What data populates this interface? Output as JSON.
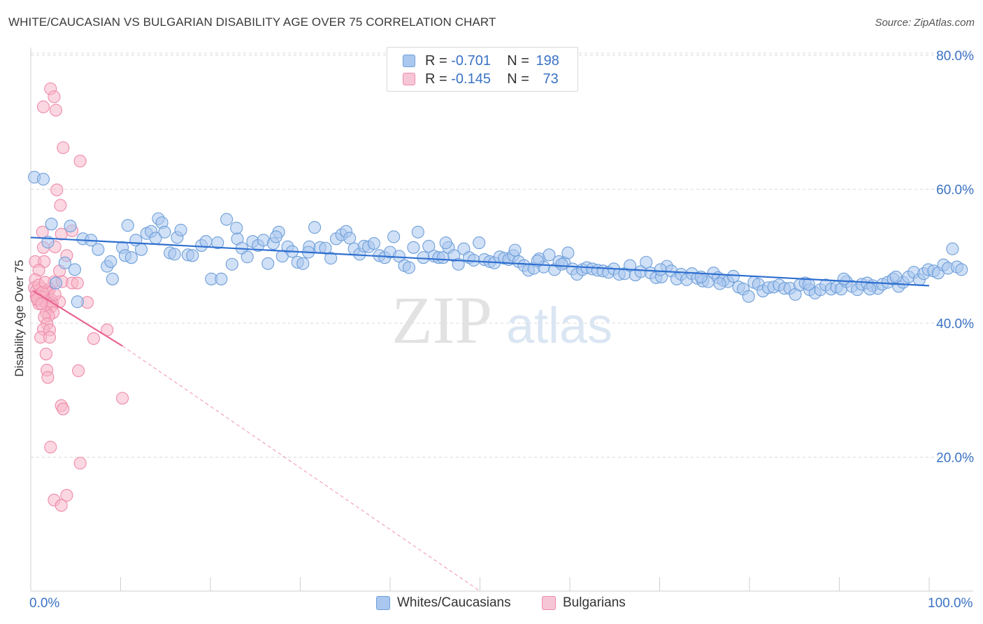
{
  "title": "WHITE/CAUCASIAN VS BULGARIAN DISABILITY AGE OVER 75 CORRELATION CHART",
  "source": "Source: ZipAtlas.com",
  "watermark": {
    "zip": "ZIP",
    "atlas": "atlas"
  },
  "legend": {
    "r_label": "R = ",
    "n_label": "N = ",
    "rows": [
      {
        "r": "-0.701",
        "n": "198"
      },
      {
        "r": "-0.145",
        "n": "73"
      }
    ]
  },
  "bottom_legend": [
    "Whites/Caucasians",
    "Bulgarians"
  ],
  "colors": {
    "blue_fill": "#a9c7ef",
    "blue_stroke": "#6e9fd9",
    "blue_line": "#2e6fd0",
    "pink_fill": "#f7b6c9",
    "pink_stroke": "#ee8aab",
    "pink_line": "#e8628f",
    "tick_label": "#3a72c4",
    "grid": "#d9d9d9"
  },
  "chart_data": {
    "type": "scatter",
    "title": "WHITE/CAUCASIAN VS BULGARIAN DISABILITY AGE OVER 75 CORRELATION CHART",
    "xlabel": "",
    "ylabel": "Disability Age Over 75",
    "xlim": [
      0,
      100
    ],
    "ylim": [
      0,
      84
    ],
    "x_tick_labels": [
      "0.0%",
      "100.0%"
    ],
    "y_ticks": [
      20,
      40,
      60,
      80
    ],
    "y_tick_labels": [
      "20.0%",
      "40.0%",
      "60.0%",
      "80.0%"
    ],
    "grid": true,
    "legend_position": "top-center",
    "series": [
      {
        "name": "Whites/Caucasians",
        "r": -0.701,
        "n": 198,
        "trend": {
          "x": [
            0,
            100
          ],
          "y": [
            52.8,
            45.6
          ]
        },
        "points": [
          [
            0.4,
            61.8
          ],
          [
            1.4,
            61.5
          ],
          [
            2.3,
            54.8
          ],
          [
            1.9,
            52.1
          ],
          [
            4.4,
            54.5
          ],
          [
            5.8,
            52.6
          ],
          [
            6.7,
            52.4
          ],
          [
            7.5,
            51.0
          ],
          [
            8.5,
            48.5
          ],
          [
            8.9,
            49.2
          ],
          [
            9.1,
            46.6
          ],
          [
            10.2,
            51.3
          ],
          [
            10.5,
            50.1
          ],
          [
            11.2,
            49.8
          ],
          [
            10.8,
            54.6
          ],
          [
            11.7,
            52.4
          ],
          [
            12.3,
            51.0
          ],
          [
            12.9,
            53.4
          ],
          [
            13.4,
            53.7
          ],
          [
            13.9,
            52.7
          ],
          [
            14.2,
            55.6
          ],
          [
            14.6,
            55.0
          ],
          [
            14.9,
            53.6
          ],
          [
            15.5,
            50.5
          ],
          [
            16.0,
            50.3
          ],
          [
            16.3,
            52.8
          ],
          [
            16.7,
            53.9
          ],
          [
            17.5,
            50.2
          ],
          [
            18.0,
            50.1
          ],
          [
            19.0,
            51.6
          ],
          [
            19.5,
            52.2
          ],
          [
            20.1,
            46.6
          ],
          [
            20.8,
            52.0
          ],
          [
            21.2,
            46.6
          ],
          [
            21.8,
            55.5
          ],
          [
            22.4,
            48.8
          ],
          [
            23.0,
            52.6
          ],
          [
            23.5,
            51.2
          ],
          [
            24.1,
            49.9
          ],
          [
            24.7,
            52.2
          ],
          [
            25.3,
            51.6
          ],
          [
            25.9,
            52.4
          ],
          [
            26.4,
            48.9
          ],
          [
            27.0,
            51.9
          ],
          [
            27.6,
            53.6
          ],
          [
            28.0,
            50.0
          ],
          [
            28.6,
            51.4
          ],
          [
            29.1,
            50.7
          ],
          [
            29.7,
            49.1
          ],
          [
            30.3,
            48.9
          ],
          [
            31.0,
            51.4
          ],
          [
            31.6,
            54.3
          ],
          [
            32.2,
            51.3
          ],
          [
            32.8,
            51.2
          ],
          [
            33.4,
            49.7
          ],
          [
            34.0,
            52.6
          ],
          [
            34.6,
            53.2
          ],
          [
            35.1,
            53.7
          ],
          [
            35.5,
            52.7
          ],
          [
            36.0,
            51.1
          ],
          [
            36.6,
            50.3
          ],
          [
            37.1,
            51.5
          ],
          [
            37.6,
            51.4
          ],
          [
            38.2,
            51.9
          ],
          [
            38.8,
            50.1
          ],
          [
            39.4,
            49.8
          ],
          [
            40.0,
            50.6
          ],
          [
            40.4,
            52.9
          ],
          [
            41.0,
            50.0
          ],
          [
            41.6,
            48.6
          ],
          [
            42.1,
            48.3
          ],
          [
            42.6,
            51.3
          ],
          [
            43.1,
            53.6
          ],
          [
            43.7,
            49.8
          ],
          [
            44.3,
            51.5
          ],
          [
            44.9,
            50.0
          ],
          [
            45.4,
            49.8
          ],
          [
            45.9,
            49.8
          ],
          [
            46.5,
            51.3
          ],
          [
            47.1,
            50.1
          ],
          [
            47.6,
            48.8
          ],
          [
            48.2,
            51.1
          ],
          [
            48.8,
            49.8
          ],
          [
            49.3,
            49.4
          ],
          [
            49.9,
            52.0
          ],
          [
            50.5,
            49.5
          ],
          [
            51.1,
            49.2
          ],
          [
            51.6,
            49.0
          ],
          [
            52.2,
            49.9
          ],
          [
            52.7,
            49.7
          ],
          [
            53.2,
            49.5
          ],
          [
            53.7,
            50.1
          ],
          [
            54.3,
            49.2
          ],
          [
            54.9,
            48.6
          ],
          [
            55.4,
            47.9
          ],
          [
            56.0,
            48.2
          ],
          [
            56.6,
            49.6
          ],
          [
            57.1,
            48.4
          ],
          [
            57.7,
            50.2
          ],
          [
            58.3,
            48.0
          ],
          [
            58.8,
            49.2
          ],
          [
            59.4,
            49.0
          ],
          [
            59.8,
            50.5
          ],
          [
            60.3,
            48.1
          ],
          [
            60.8,
            47.3
          ],
          [
            61.4,
            48.0
          ],
          [
            61.9,
            48.3
          ],
          [
            62.5,
            48.1
          ],
          [
            63.1,
            47.9
          ],
          [
            63.7,
            47.8
          ],
          [
            64.3,
            47.6
          ],
          [
            64.9,
            48.1
          ],
          [
            65.5,
            47.3
          ],
          [
            66.1,
            47.4
          ],
          [
            66.7,
            48.6
          ],
          [
            67.3,
            47.2
          ],
          [
            67.9,
            47.7
          ],
          [
            68.5,
            49.1
          ],
          [
            69.0,
            47.5
          ],
          [
            69.6,
            46.8
          ],
          [
            70.2,
            46.9
          ],
          [
            70.8,
            48.5
          ],
          [
            71.3,
            47.8
          ],
          [
            71.9,
            46.6
          ],
          [
            72.4,
            47.3
          ],
          [
            73.0,
            46.5
          ],
          [
            73.6,
            47.4
          ],
          [
            74.2,
            46.7
          ],
          [
            74.8,
            46.3
          ],
          [
            75.4,
            46.2
          ],
          [
            76.0,
            47.5
          ],
          [
            76.5,
            46.8
          ],
          [
            77.1,
            46.4
          ],
          [
            77.6,
            46.2
          ],
          [
            78.2,
            47.0
          ],
          [
            78.8,
            45.4
          ],
          [
            79.3,
            45.1
          ],
          [
            79.9,
            44.0
          ],
          [
            80.5,
            46.1
          ],
          [
            81.0,
            45.8
          ],
          [
            81.5,
            44.8
          ],
          [
            82.1,
            45.3
          ],
          [
            82.7,
            45.4
          ],
          [
            83.3,
            45.7
          ],
          [
            83.9,
            45.2
          ],
          [
            84.5,
            45.2
          ],
          [
            85.1,
            44.3
          ],
          [
            85.6,
            45.7
          ],
          [
            86.2,
            46.0
          ],
          [
            86.7,
            45.0
          ],
          [
            87.3,
            44.5
          ],
          [
            87.9,
            45.0
          ],
          [
            88.5,
            45.7
          ],
          [
            89.1,
            45.1
          ],
          [
            89.7,
            45.4
          ],
          [
            90.2,
            45.1
          ],
          [
            90.8,
            46.2
          ],
          [
            91.4,
            45.5
          ],
          [
            92.0,
            45.0
          ],
          [
            92.5,
            45.8
          ],
          [
            93.1,
            46.0
          ],
          [
            93.7,
            45.6
          ],
          [
            94.3,
            45.2
          ],
          [
            94.8,
            45.8
          ],
          [
            95.4,
            46.1
          ],
          [
            96.0,
            46.6
          ],
          [
            96.6,
            45.5
          ],
          [
            97.1,
            46.1
          ],
          [
            97.7,
            46.9
          ],
          [
            98.3,
            47.6
          ],
          [
            98.9,
            46.5
          ],
          [
            99.4,
            47.4
          ],
          [
            99.9,
            48.0
          ],
          [
            100.5,
            47.8
          ],
          [
            101.0,
            47.5
          ],
          [
            101.6,
            48.7
          ],
          [
            102.1,
            48.2
          ],
          [
            102.6,
            51.1
          ],
          [
            103.1,
            48.4
          ],
          [
            103.6,
            48.0
          ],
          [
            2.8,
            46.0
          ],
          [
            3.8,
            49.0
          ],
          [
            5.2,
            43.2
          ],
          [
            4.9,
            48.0
          ],
          [
            22.9,
            54.2
          ],
          [
            27.3,
            52.9
          ],
          [
            30.9,
            50.6
          ],
          [
            46.2,
            52.0
          ],
          [
            53.9,
            50.9
          ],
          [
            56.4,
            49.3
          ],
          [
            70.1,
            48.0
          ],
          [
            74.6,
            46.9
          ],
          [
            76.7,
            45.9
          ],
          [
            86.6,
            45.8
          ],
          [
            90.5,
            46.6
          ],
          [
            93.4,
            45.1
          ],
          [
            96.3,
            46.9
          ],
          [
            59.1,
            48.8
          ]
        ]
      },
      {
        "name": "Bulgarians",
        "r": -0.145,
        "n": 73,
        "trend": {
          "x": [
            0.3,
            10.2
          ],
          "y": [
            44.8,
            36.6
          ]
        },
        "trend_extension": {
          "x": [
            10.2,
            50
          ],
          "y": [
            36.6,
            0
          ]
        },
        "points": [
          [
            2.2,
            75.0
          ],
          [
            1.4,
            72.3
          ],
          [
            2.6,
            73.8
          ],
          [
            2.8,
            71.8
          ],
          [
            3.6,
            66.2
          ],
          [
            5.5,
            64.2
          ],
          [
            2.9,
            59.9
          ],
          [
            3.3,
            57.6
          ],
          [
            1.3,
            53.6
          ],
          [
            3.4,
            53.3
          ],
          [
            4.6,
            53.8
          ],
          [
            1.4,
            51.3
          ],
          [
            2.7,
            51.4
          ],
          [
            4.0,
            50.1
          ],
          [
            0.5,
            49.2
          ],
          [
            1.5,
            49.2
          ],
          [
            3.2,
            47.8
          ],
          [
            0.9,
            47.9
          ],
          [
            0.5,
            46.5
          ],
          [
            2.6,
            46.2
          ],
          [
            3.5,
            46.2
          ],
          [
            4.6,
            46.0
          ],
          [
            5.2,
            46.0
          ],
          [
            0.4,
            45.3
          ],
          [
            1.2,
            45.2
          ],
          [
            2.1,
            45.1
          ],
          [
            1.7,
            44.8
          ],
          [
            0.7,
            44.3
          ],
          [
            1.1,
            44.2
          ],
          [
            1.9,
            44.6
          ],
          [
            0.6,
            44.8
          ],
          [
            1.0,
            44.0
          ],
          [
            1.3,
            43.9
          ],
          [
            2.0,
            43.5
          ],
          [
            0.8,
            43.4
          ],
          [
            1.6,
            43.2
          ],
          [
            2.3,
            43.5
          ],
          [
            3.2,
            43.2
          ],
          [
            0.9,
            42.9
          ],
          [
            1.8,
            42.8
          ],
          [
            2.4,
            43.0
          ],
          [
            6.3,
            43.1
          ],
          [
            2.3,
            42.5
          ],
          [
            2.5,
            41.6
          ],
          [
            1.7,
            41.6
          ],
          [
            2.0,
            41.1
          ],
          [
            1.5,
            40.9
          ],
          [
            1.8,
            39.9
          ],
          [
            1.4,
            39.1
          ],
          [
            2.1,
            39.0
          ],
          [
            8.5,
            39.0
          ],
          [
            1.1,
            37.9
          ],
          [
            2.1,
            37.9
          ],
          [
            7.0,
            37.7
          ],
          [
            1.7,
            35.4
          ],
          [
            1.8,
            33.0
          ],
          [
            5.3,
            32.9
          ],
          [
            1.9,
            31.9
          ],
          [
            3.4,
            27.7
          ],
          [
            3.6,
            27.2
          ],
          [
            10.2,
            28.8
          ],
          [
            2.2,
            21.5
          ],
          [
            5.5,
            19.1
          ],
          [
            4.0,
            14.3
          ],
          [
            2.6,
            13.6
          ],
          [
            3.4,
            12.8
          ],
          [
            0.6,
            44.0
          ],
          [
            0.9,
            45.7
          ],
          [
            1.3,
            44.6
          ],
          [
            1.6,
            46.1
          ],
          [
            0.7,
            43.6
          ],
          [
            1.2,
            42.9
          ],
          [
            2.7,
            44.3
          ]
        ]
      }
    ]
  }
}
